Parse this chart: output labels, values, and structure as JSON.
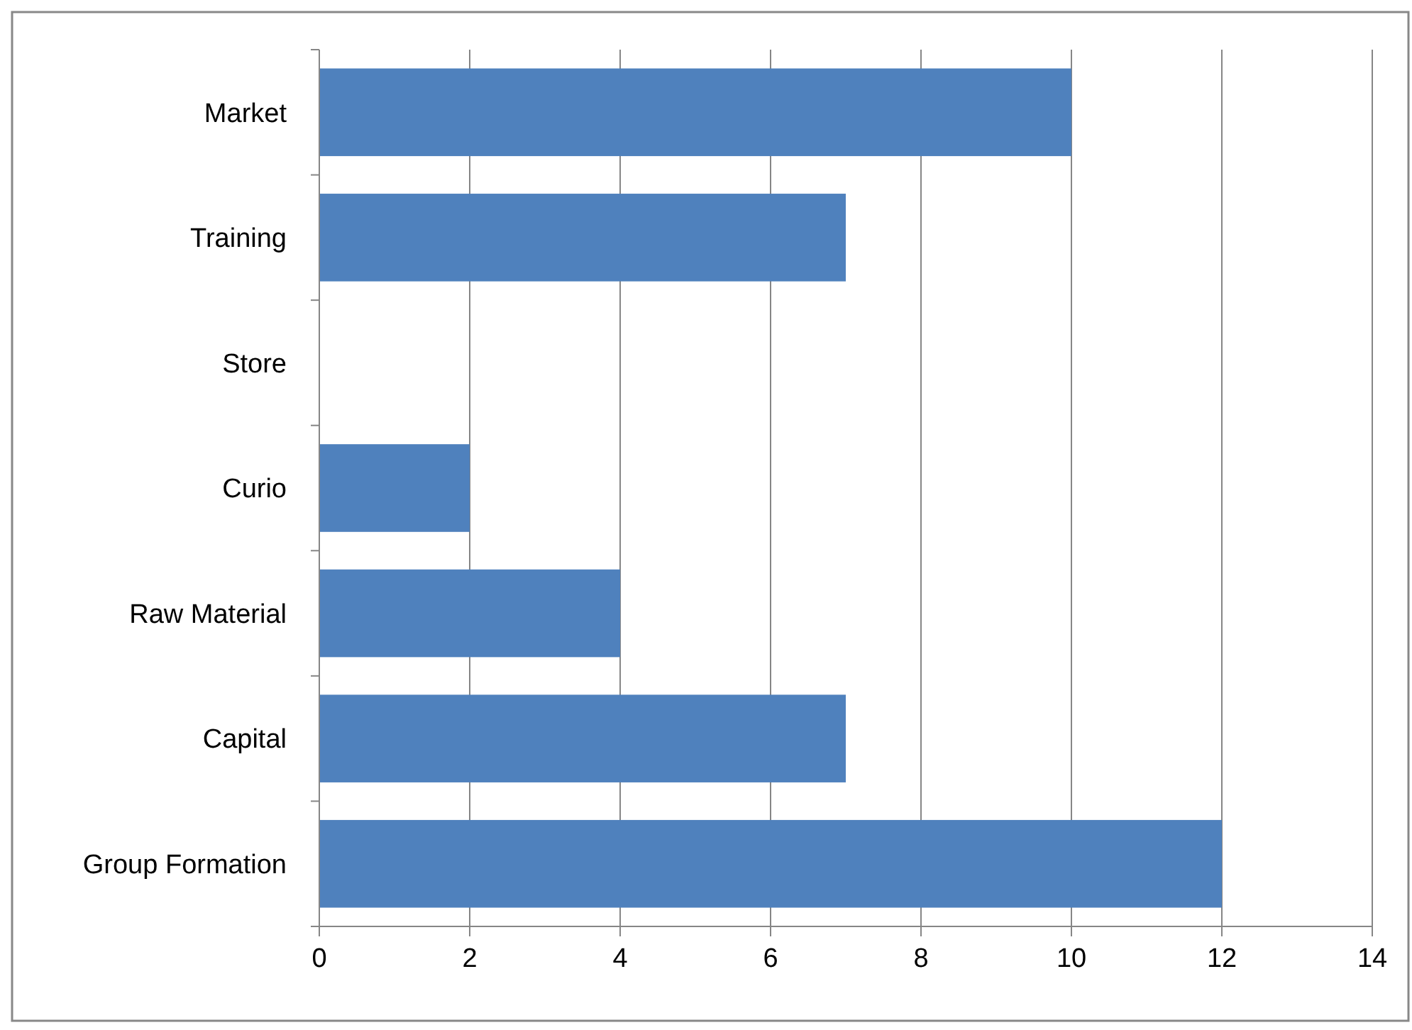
{
  "chart_data": {
    "type": "bar",
    "orientation": "horizontal",
    "categories": [
      "Market",
      "Training",
      "Store",
      "Curio",
      "Raw Material",
      "Capital",
      "Group Formation"
    ],
    "values": [
      10,
      7,
      0,
      2,
      4,
      7,
      12
    ],
    "color": "#4f81bd",
    "xlim": [
      0,
      14
    ],
    "xticks": [
      0,
      2,
      4,
      6,
      8,
      10,
      12,
      14
    ],
    "grid": "x"
  }
}
